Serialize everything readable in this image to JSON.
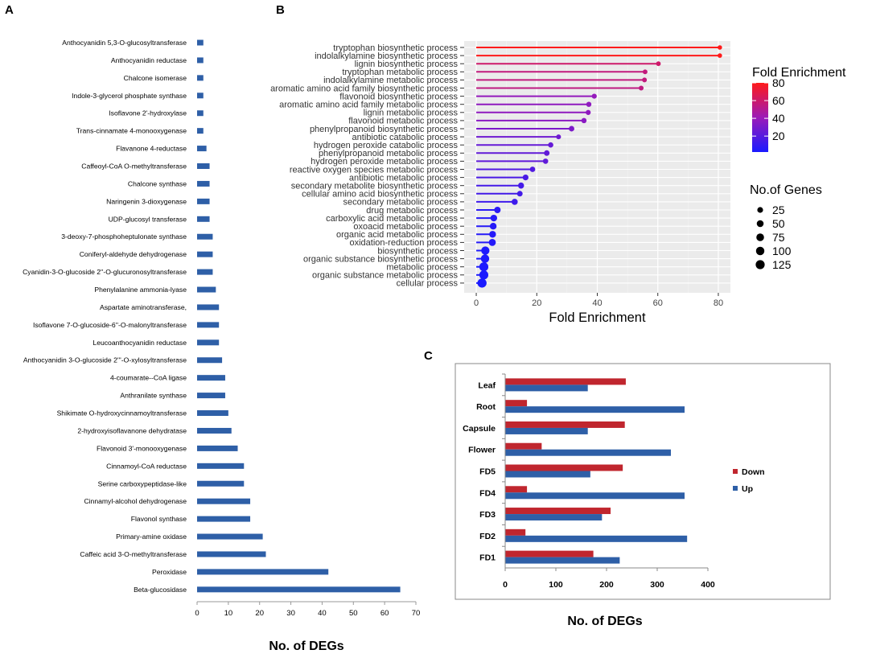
{
  "panels": {
    "a_label": "A",
    "b_label": "B",
    "c_label": "C"
  },
  "chart_data": [
    {
      "panel": "A",
      "type": "bar",
      "orientation": "horizontal",
      "title": "",
      "xlabel": "No. of DEGs",
      "ylabel": "",
      "xlim": [
        0,
        70
      ],
      "xticks": [
        0,
        10,
        20,
        30,
        40,
        50,
        60,
        70
      ],
      "grid": false,
      "bar_color": "#2e5fa7",
      "categories": [
        "Anthocyanidin 5,3-O-glucosyltransferase",
        "Anthocyanidin reductase",
        "Chalcone isomerase",
        "Indole-3-glycerol phosphate synthase",
        "Isoflavone 2'-hydroxylase",
        "Trans-cinnamate 4-monooxygenase",
        "Flavanone 4-reductase",
        "Caffeoyl-CoA O-methyltransferase",
        "Chalcone synthase",
        "Naringenin 3-dioxygenase",
        "UDP-glucosyl transferase",
        "3-deoxy-7-phosphoheptulonate synthase",
        "Coniferyl-aldehyde dehydrogenase",
        "Cyanidin-3-O-glucoside 2''-O-glucuronosyltransferase",
        "Phenylalanine ammonia-lyase",
        "Aspartate aminotransferase,",
        "Isoflavone 7-O-glucoside-6''-O-malonyltransferase",
        "Leucoanthocyanidin reductase",
        "Anthocyanidin 3-O-glucoside 2'''-O-xylosyltransferase",
        "4-coumarate--CoA ligase",
        "Anthranilate synthase",
        "Shikimate O-hydroxycinnamoyltransferase",
        "2-hydroxyisoflavanone dehydratase",
        "Flavonoid 3'-monooxygenase",
        "Cinnamoyl-CoA reductase",
        "Serine carboxypeptidase-like",
        "Cinnamyl-alcohol dehydrogenase",
        "Flavonol synthase",
        "Primary-amine oxidase",
        "Caffeic acid 3-O-methyltransferase",
        "Peroxidase",
        "Beta-glucosidase"
      ],
      "values": [
        2,
        2,
        2,
        2,
        2,
        2,
        3,
        4,
        4,
        4,
        4,
        5,
        5,
        5,
        6,
        7,
        7,
        7,
        8,
        9,
        9,
        10,
        11,
        13,
        15,
        15,
        17,
        17,
        21,
        22,
        42,
        65
      ]
    },
    {
      "panel": "B",
      "type": "scatter",
      "style": "lollipop",
      "title": "",
      "xlabel": "Fold Enrichment",
      "ylabel": "",
      "xlim": [
        -4,
        84
      ],
      "xticks": [
        0,
        20,
        40,
        60,
        80
      ],
      "grid": true,
      "panel_background": "#ebebeb",
      "color_legend": {
        "title": "Fold Enrichment",
        "range": [
          2,
          80
        ],
        "ticks": [
          20,
          40,
          60,
          80
        ],
        "color_low": "#1a1aff",
        "color_mid": "#9c1ab8",
        "color_high": "#ff1a1a"
      },
      "size_legend": {
        "title": "No.of Genes",
        "values": [
          25,
          50,
          75,
          100,
          125
        ]
      },
      "categories": [
        "tryptophan biosynthetic process",
        "indolalkylamine biosynthetic process",
        "lignin biosynthetic process",
        "tryptophan metabolic process",
        "indolalkylamine metabolic process",
        "aromatic amino acid family biosynthetic process",
        "flavonoid biosynthetic process",
        "aromatic amino acid family metabolic process",
        "lignin metabolic process",
        "flavonoid metabolic process",
        "phenylpropanoid biosynthetic process",
        "antibiotic catabolic process",
        "hydrogen peroxide catabolic process",
        "phenylpropanoid metabolic process",
        "hydrogen peroxide metabolic process",
        "reactive oxygen species metabolic process",
        "antibiotic metabolic process",
        "secondary metabolite biosynthetic process",
        "cellular amino acid biosynthetic process",
        "secondary metabolic process",
        "drug metabolic process",
        "carboxylic acid metabolic process",
        "oxoacid metabolic process",
        "organic acid metabolic process",
        "oxidation-reduction process",
        "biosynthetic process",
        "organic substance biosynthetic process",
        "metabolic process",
        "organic substance metabolic process",
        "cellular process"
      ],
      "values": [
        80.5,
        80.5,
        60.2,
        55.8,
        55.6,
        54.5,
        39.0,
        37.2,
        37.0,
        35.6,
        31.5,
        27.2,
        24.6,
        23.3,
        22.9,
        18.6,
        16.3,
        14.8,
        14.4,
        12.7,
        7.0,
        5.8,
        5.6,
        5.4,
        5.3,
        3.0,
        2.9,
        2.5,
        2.5,
        1.9
      ],
      "genes": [
        6,
        6,
        8,
        9,
        9,
        10,
        12,
        14,
        13,
        15,
        20,
        10,
        16,
        22,
        17,
        18,
        25,
        30,
        22,
        32,
        38,
        45,
        47,
        48,
        55,
        95,
        100,
        125,
        125,
        130
      ]
    },
    {
      "panel": "C",
      "type": "bar",
      "orientation": "horizontal",
      "title": "",
      "xlabel": "No. of DEGs",
      "ylabel": "",
      "xlim": [
        0,
        400
      ],
      "xticks": [
        0,
        100,
        200,
        300,
        400
      ],
      "grid": false,
      "legend": "right",
      "categories": [
        "Leaf",
        "Root",
        "Capsule",
        "Flower",
        "FD5",
        "FD4",
        "FD3",
        "FD2",
        "FD1"
      ],
      "series": [
        {
          "name": "Down",
          "color": "#c0262e",
          "values": [
            238,
            43,
            236,
            72,
            232,
            43,
            208,
            40,
            174
          ]
        },
        {
          "name": "Up",
          "color": "#2e5fa7",
          "values": [
            163,
            354,
            163,
            327,
            168,
            354,
            191,
            359,
            226
          ]
        }
      ]
    }
  ]
}
